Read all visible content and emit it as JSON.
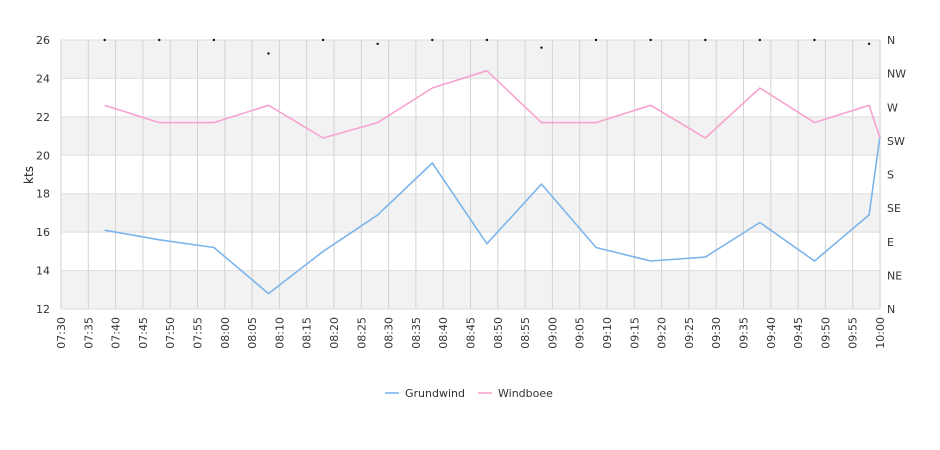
{
  "chart_data": {
    "type": "line",
    "ylabel": "kts",
    "ylim": [
      12,
      26
    ],
    "y_ticks": [
      "12",
      "14",
      "16",
      "18",
      "20",
      "22",
      "24",
      "26"
    ],
    "x_ticks": [
      "07:30",
      "07:35",
      "07:40",
      "07:45",
      "07:50",
      "07:55",
      "08:00",
      "08:05",
      "08:10",
      "08:15",
      "08:20",
      "08:25",
      "08:30",
      "08:35",
      "08:40",
      "08:45",
      "08:50",
      "08:55",
      "09:00",
      "09:05",
      "09:10",
      "09:15",
      "09:20",
      "09:25",
      "09:30",
      "09:35",
      "09:40",
      "09:45",
      "09:50",
      "09:55",
      "10:00"
    ],
    "right_axis_ticks": [
      "N",
      "NE",
      "E",
      "SE",
      "S",
      "SW",
      "W",
      "NW",
      "N"
    ],
    "x": [
      "07:38",
      "07:48",
      "07:58",
      "08:08",
      "08:18",
      "08:28",
      "08:38",
      "08:48",
      "08:58",
      "09:08",
      "09:18",
      "09:28",
      "09:38",
      "09:48",
      "09:58",
      "10:00"
    ],
    "series": [
      {
        "name": "Grundwind",
        "color": "#7cb5ec",
        "values": [
          16.1,
          15.6,
          15.2,
          12.8,
          15.0,
          16.9,
          19.6,
          15.4,
          18.5,
          15.2,
          14.5,
          14.7,
          16.5,
          14.5,
          16.9,
          21.0
        ]
      },
      {
        "name": "Windboee",
        "color": "#f7a3cf",
        "values": [
          22.6,
          21.7,
          21.7,
          22.6,
          20.9,
          21.7,
          23.5,
          24.4,
          21.7,
          21.7,
          22.6,
          20.9,
          23.5,
          21.7,
          22.6,
          20.9
        ]
      }
    ],
    "direction_markers": {
      "x": [
        "07:38",
        "07:48",
        "07:58",
        "08:08",
        "08:18",
        "08:28",
        "08:38",
        "08:48",
        "08:58",
        "09:08",
        "09:18",
        "09:28",
        "09:38",
        "09:48",
        "09:58"
      ],
      "y": [
        26,
        26,
        26,
        25.3,
        26,
        25.8,
        26,
        26,
        25.6,
        26,
        26,
        26,
        26,
        26,
        25.8
      ]
    },
    "grid": true,
    "alternating_bands": true,
    "legend": "bottom-center"
  }
}
